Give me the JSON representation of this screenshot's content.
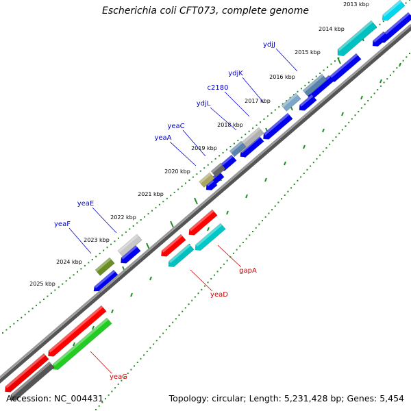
{
  "title": "Escherichia coli CFT073, complete genome",
  "footer": {
    "accession": "Accession: NC_004431",
    "summary": "Topology: circular; Length: 5,231,428 bp; Genes: 5,454"
  },
  "colors": {
    "backbone": "#999999",
    "ticks": "#228b22",
    "forward_label": "#0000cc",
    "reverse_label": "#cc0000"
  },
  "kbp_ticks": [
    "2013 kbp",
    "2014 kbp",
    "2015 kbp",
    "2016 kbp",
    "2017 kbp",
    "2018 kbp",
    "2019 kbp",
    "2020 kbp",
    "2021 kbp",
    "2022 kbp",
    "2023 kbp",
    "2024 kbp",
    "2025 kbp"
  ],
  "forward_genes": [
    {
      "label": "ydjJ",
      "color": "#5b84ad"
    },
    {
      "label": "ydjK",
      "color": "#7aa7c7"
    },
    {
      "label": "c2180",
      "color": "#b0b0b0"
    },
    {
      "label": "ydjL",
      "color": "#5b84ad"
    },
    {
      "label": "yeaC",
      "color": "#666666"
    },
    {
      "label": "yeaA",
      "color": "#aaa860"
    },
    {
      "label": "yeaE",
      "color": "#c8c8c8"
    },
    {
      "label": "yeaF",
      "color": "#6b8e23"
    }
  ],
  "reverse_genes": [
    {
      "label": "gapA",
      "color": "#ff0000"
    },
    {
      "label": "yeaD",
      "color": "#00c8c8"
    },
    {
      "label": "yeaG",
      "color": "#ff0000"
    }
  ]
}
